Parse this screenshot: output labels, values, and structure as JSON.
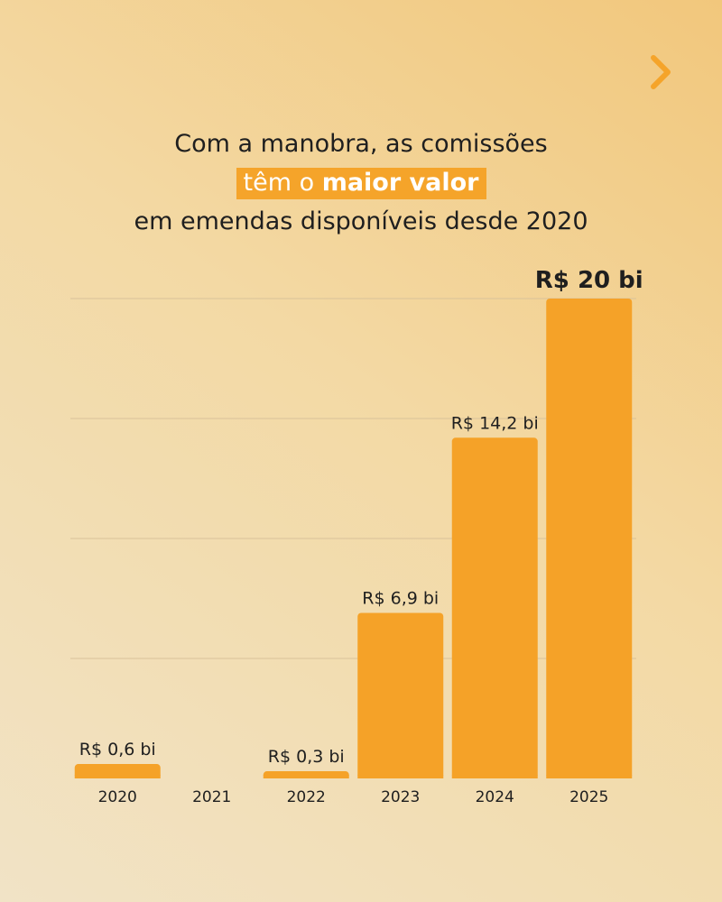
{
  "nav": {
    "next_icon": "chevron-right-icon"
  },
  "colors": {
    "bar": "#f5a228",
    "accent": "#f5a42a",
    "text": "#1f1f1f"
  },
  "chart_data": {
    "type": "bar",
    "title_parts": [
      "Com a manobra, as comissões",
      "têm o ",
      "maior valor",
      "em emendas disponíveis desde 2020"
    ],
    "categories": [
      "2020",
      "2021",
      "2022",
      "2023",
      "2024",
      "2025"
    ],
    "values": [
      0.6,
      0,
      0.3,
      6.9,
      14.2,
      20
    ],
    "data_labels": [
      "R$ 0,6 bi",
      "",
      "R$ 0,3 bi",
      "R$ 6,9 bi",
      "R$ 14,2 bi",
      "R$ 20 bi"
    ],
    "highlight": "2025",
    "ylim": [
      0,
      20
    ],
    "grid": true,
    "xlabel": "",
    "ylabel": ""
  }
}
